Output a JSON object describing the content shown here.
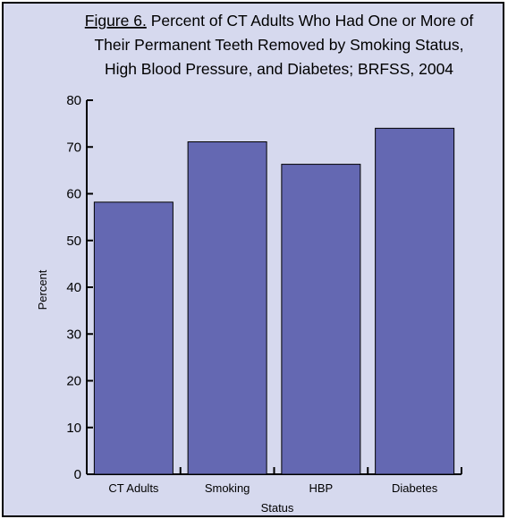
{
  "figure": {
    "label": "Figure 6.",
    "title_line1_rest": " Percent of CT Adults Who Had One or More of",
    "title_line2": "Their Permanent Teeth Removed by Smoking Status,",
    "title_line3": "High Blood Pressure, and Diabetes; BRFSS, 2004"
  },
  "colors": {
    "bar_fill": "#6468b2",
    "background": "#d6d9ee",
    "axis": "#000000"
  },
  "chart_data": {
    "type": "bar",
    "title": "Figure 6. Percent of CT Adults Who Had One or More of Their Permanent Teeth Removed by Smoking Status, High Blood Pressure, and Diabetes; BRFSS, 2004",
    "categories": [
      "CT Adults",
      "Smoking",
      "HBP",
      "Diabetes"
    ],
    "values": [
      58.2,
      71.1,
      66.3,
      74.0
    ],
    "xlabel": "Status",
    "ylabel": "Percent",
    "ylim": [
      0,
      80
    ],
    "yticks": [
      0,
      10,
      20,
      30,
      40,
      50,
      60,
      70,
      80
    ],
    "grid": false,
    "legend": "none"
  }
}
